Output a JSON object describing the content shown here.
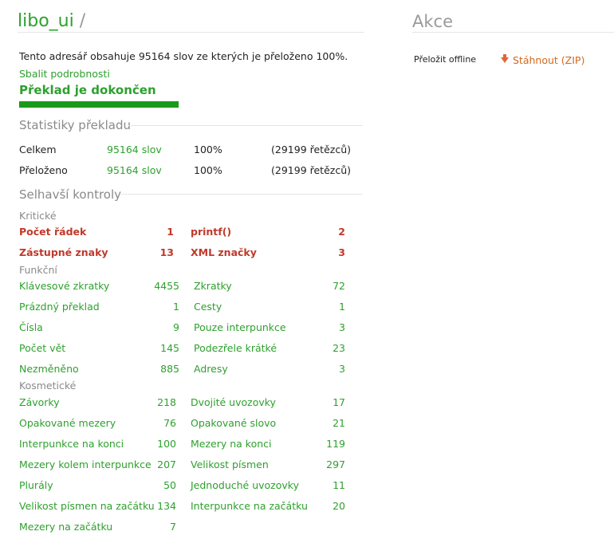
{
  "header": {
    "title": "libo_ui",
    "separator": "/"
  },
  "actions": {
    "title": "Akce",
    "offline_label": "Přeložit offline",
    "download_label": "Stáhnout (ZIP)"
  },
  "summary": {
    "description": "Tento adresář obsahuje 95164 slov ze kterých je přeloženo 100%.",
    "collapse_link_1": "Sbalit",
    "collapse_link_2": "podrobnosti",
    "status": "Překlad je dokončen",
    "progress": 1.0
  },
  "stats": {
    "title": "Statistiky překladu",
    "rows": [
      {
        "label": "Celkem",
        "words": "95164 slov",
        "percent": "100%",
        "strings": "(29199 řetězců)"
      },
      {
        "label": "Přeloženo",
        "words": "95164 slov",
        "percent": "100%",
        "strings": "(29199 řetězců)"
      }
    ]
  },
  "checks": {
    "title": "Selhavší kontroly",
    "critical_label": "Kritické",
    "functional_label": "Funkční",
    "cosmetic_label": "Kosmetické",
    "critical": [
      {
        "label": "Počet řádek",
        "count": "1"
      },
      {
        "label": "printf()",
        "count": "2"
      },
      {
        "label": "Zástupné znaky",
        "count": "13"
      },
      {
        "label": "XML značky",
        "count": "3"
      }
    ],
    "functional": [
      {
        "label": "Klávesové zkratky",
        "count": "4455"
      },
      {
        "label": "Zkratky",
        "count": "72"
      },
      {
        "label": "Prázdný překlad",
        "count": "1"
      },
      {
        "label": "Cesty",
        "count": "1"
      },
      {
        "label": "Čísla",
        "count": "9"
      },
      {
        "label": "Pouze interpunkce",
        "count": "3"
      },
      {
        "label": "Počet vět",
        "count": "145"
      },
      {
        "label": "Podezřele krátké",
        "count": "23"
      },
      {
        "label": "Nezměněno",
        "count": "885"
      },
      {
        "label": "Adresy",
        "count": "3"
      }
    ],
    "cosmetic": [
      {
        "label": "Závorky",
        "count": "218"
      },
      {
        "label": "Dvojité uvozovky",
        "count": "17"
      },
      {
        "label": "Opakované mezery",
        "count": "76"
      },
      {
        "label": "Opakované slovo",
        "count": "21"
      },
      {
        "label": "Interpunkce na konci",
        "count": "100"
      },
      {
        "label": "Mezery na konci",
        "count": "119"
      },
      {
        "label": "Mezery kolem interpunkce",
        "count": "207"
      },
      {
        "label": "Velikost písmen",
        "count": "297"
      },
      {
        "label": "Plurály",
        "count": "50"
      },
      {
        "label": "Jednoduché uvozovky",
        "count": "11"
      },
      {
        "label": "Velikost písmen na začátku",
        "count": "134"
      },
      {
        "label": "Interpunkce na začátku",
        "count": "20"
      },
      {
        "label": "Mezery na začátku",
        "count": "7"
      }
    ]
  }
}
